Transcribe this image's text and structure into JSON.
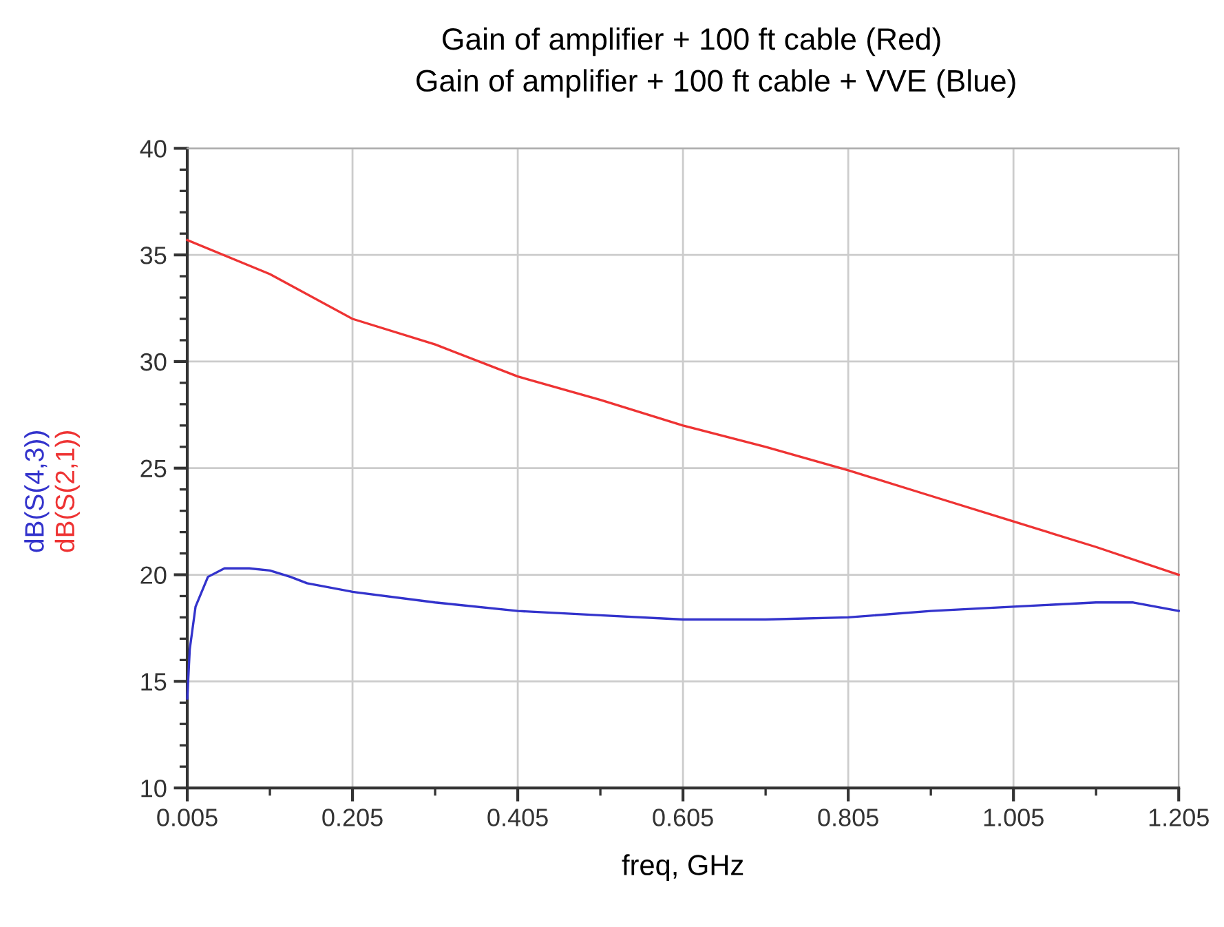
{
  "chart_data": {
    "type": "line",
    "title": "Gain of amplifier + 100 ft cable (Red)",
    "subtitle": "Gain of amplifier + 100 ft cable + VVE (Blue)",
    "xlabel": "freq, GHz",
    "xlim": [
      0.005,
      1.205
    ],
    "xticks": [
      0.005,
      0.205,
      0.405,
      0.605,
      0.805,
      1.005,
      1.205
    ],
    "ylim": [
      10,
      40
    ],
    "yticks": [
      10,
      15,
      20,
      25,
      30,
      35,
      40
    ],
    "grid": true,
    "line_style": "solid",
    "marker": "none",
    "series": [
      {
        "name": "dB(S(4,3))",
        "color": "#3333cc",
        "x": [
          0.005,
          0.008,
          0.015,
          0.03,
          0.05,
          0.08,
          0.105,
          0.13,
          0.15,
          0.205,
          0.305,
          0.405,
          0.505,
          0.605,
          0.705,
          0.805,
          0.905,
          1.005,
          1.105,
          1.15,
          1.205
        ],
        "values": [
          14.2,
          16.5,
          18.5,
          19.9,
          20.3,
          20.3,
          20.2,
          19.9,
          19.6,
          19.2,
          18.7,
          18.3,
          18.1,
          17.9,
          17.9,
          18.0,
          18.3,
          18.5,
          18.7,
          18.7,
          18.3
        ]
      },
      {
        "name": "dB(S(2,1))",
        "color": "#ee3333",
        "x": [
          0.005,
          0.105,
          0.205,
          0.305,
          0.405,
          0.505,
          0.605,
          0.705,
          0.805,
          0.905,
          1.005,
          1.105,
          1.205
        ],
        "values": [
          35.7,
          34.1,
          32.0,
          30.8,
          29.3,
          28.2,
          27.0,
          26.0,
          24.9,
          23.7,
          22.5,
          21.3,
          20.0
        ]
      }
    ]
  }
}
